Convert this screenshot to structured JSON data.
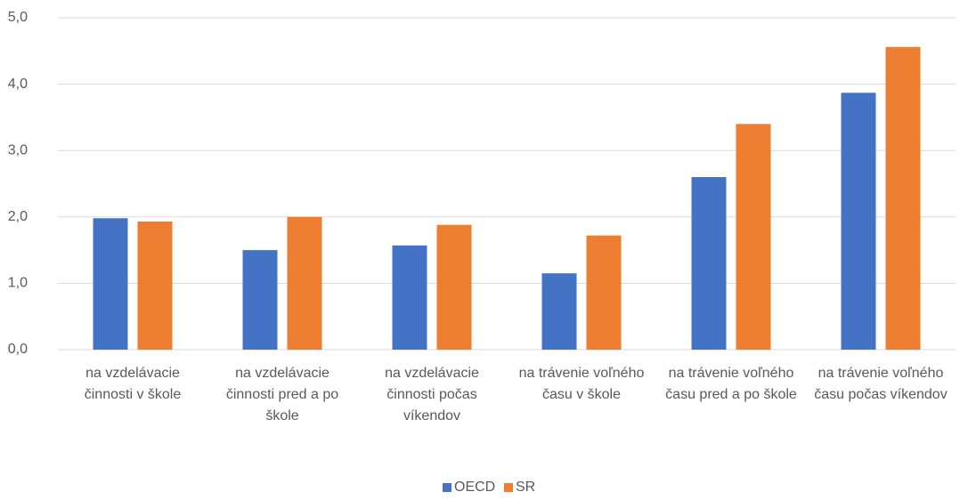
{
  "chart_data": {
    "type": "bar",
    "categories": [
      "na vzdelávacie činnosti v škole",
      "na vzdelávacie činnosti pred a po škole",
      "na vzdelávacie činnosti počas víkendov",
      "na trávenie voľného času v škole",
      "na trávenie voľného času pred a po škole",
      "na trávenie voľného času počas víkendov"
    ],
    "series": [
      {
        "name": "OECD",
        "color": "#4472c4",
        "values": [
          1.98,
          1.5,
          1.57,
          1.15,
          2.6,
          3.87
        ]
      },
      {
        "name": "SR",
        "color": "#ed7d31",
        "values": [
          1.93,
          2.0,
          1.88,
          1.72,
          3.4,
          4.56
        ]
      }
    ],
    "ylim": [
      0,
      5
    ],
    "yticks": [
      {
        "value": 0,
        "label": "0,0"
      },
      {
        "value": 1,
        "label": "1,0"
      },
      {
        "value": 2,
        "label": "2,0"
      },
      {
        "value": 3,
        "label": "3,0"
      },
      {
        "value": 4,
        "label": "4,0"
      },
      {
        "value": 5,
        "label": "5,0"
      }
    ],
    "grid": true,
    "legend": "bottom"
  }
}
